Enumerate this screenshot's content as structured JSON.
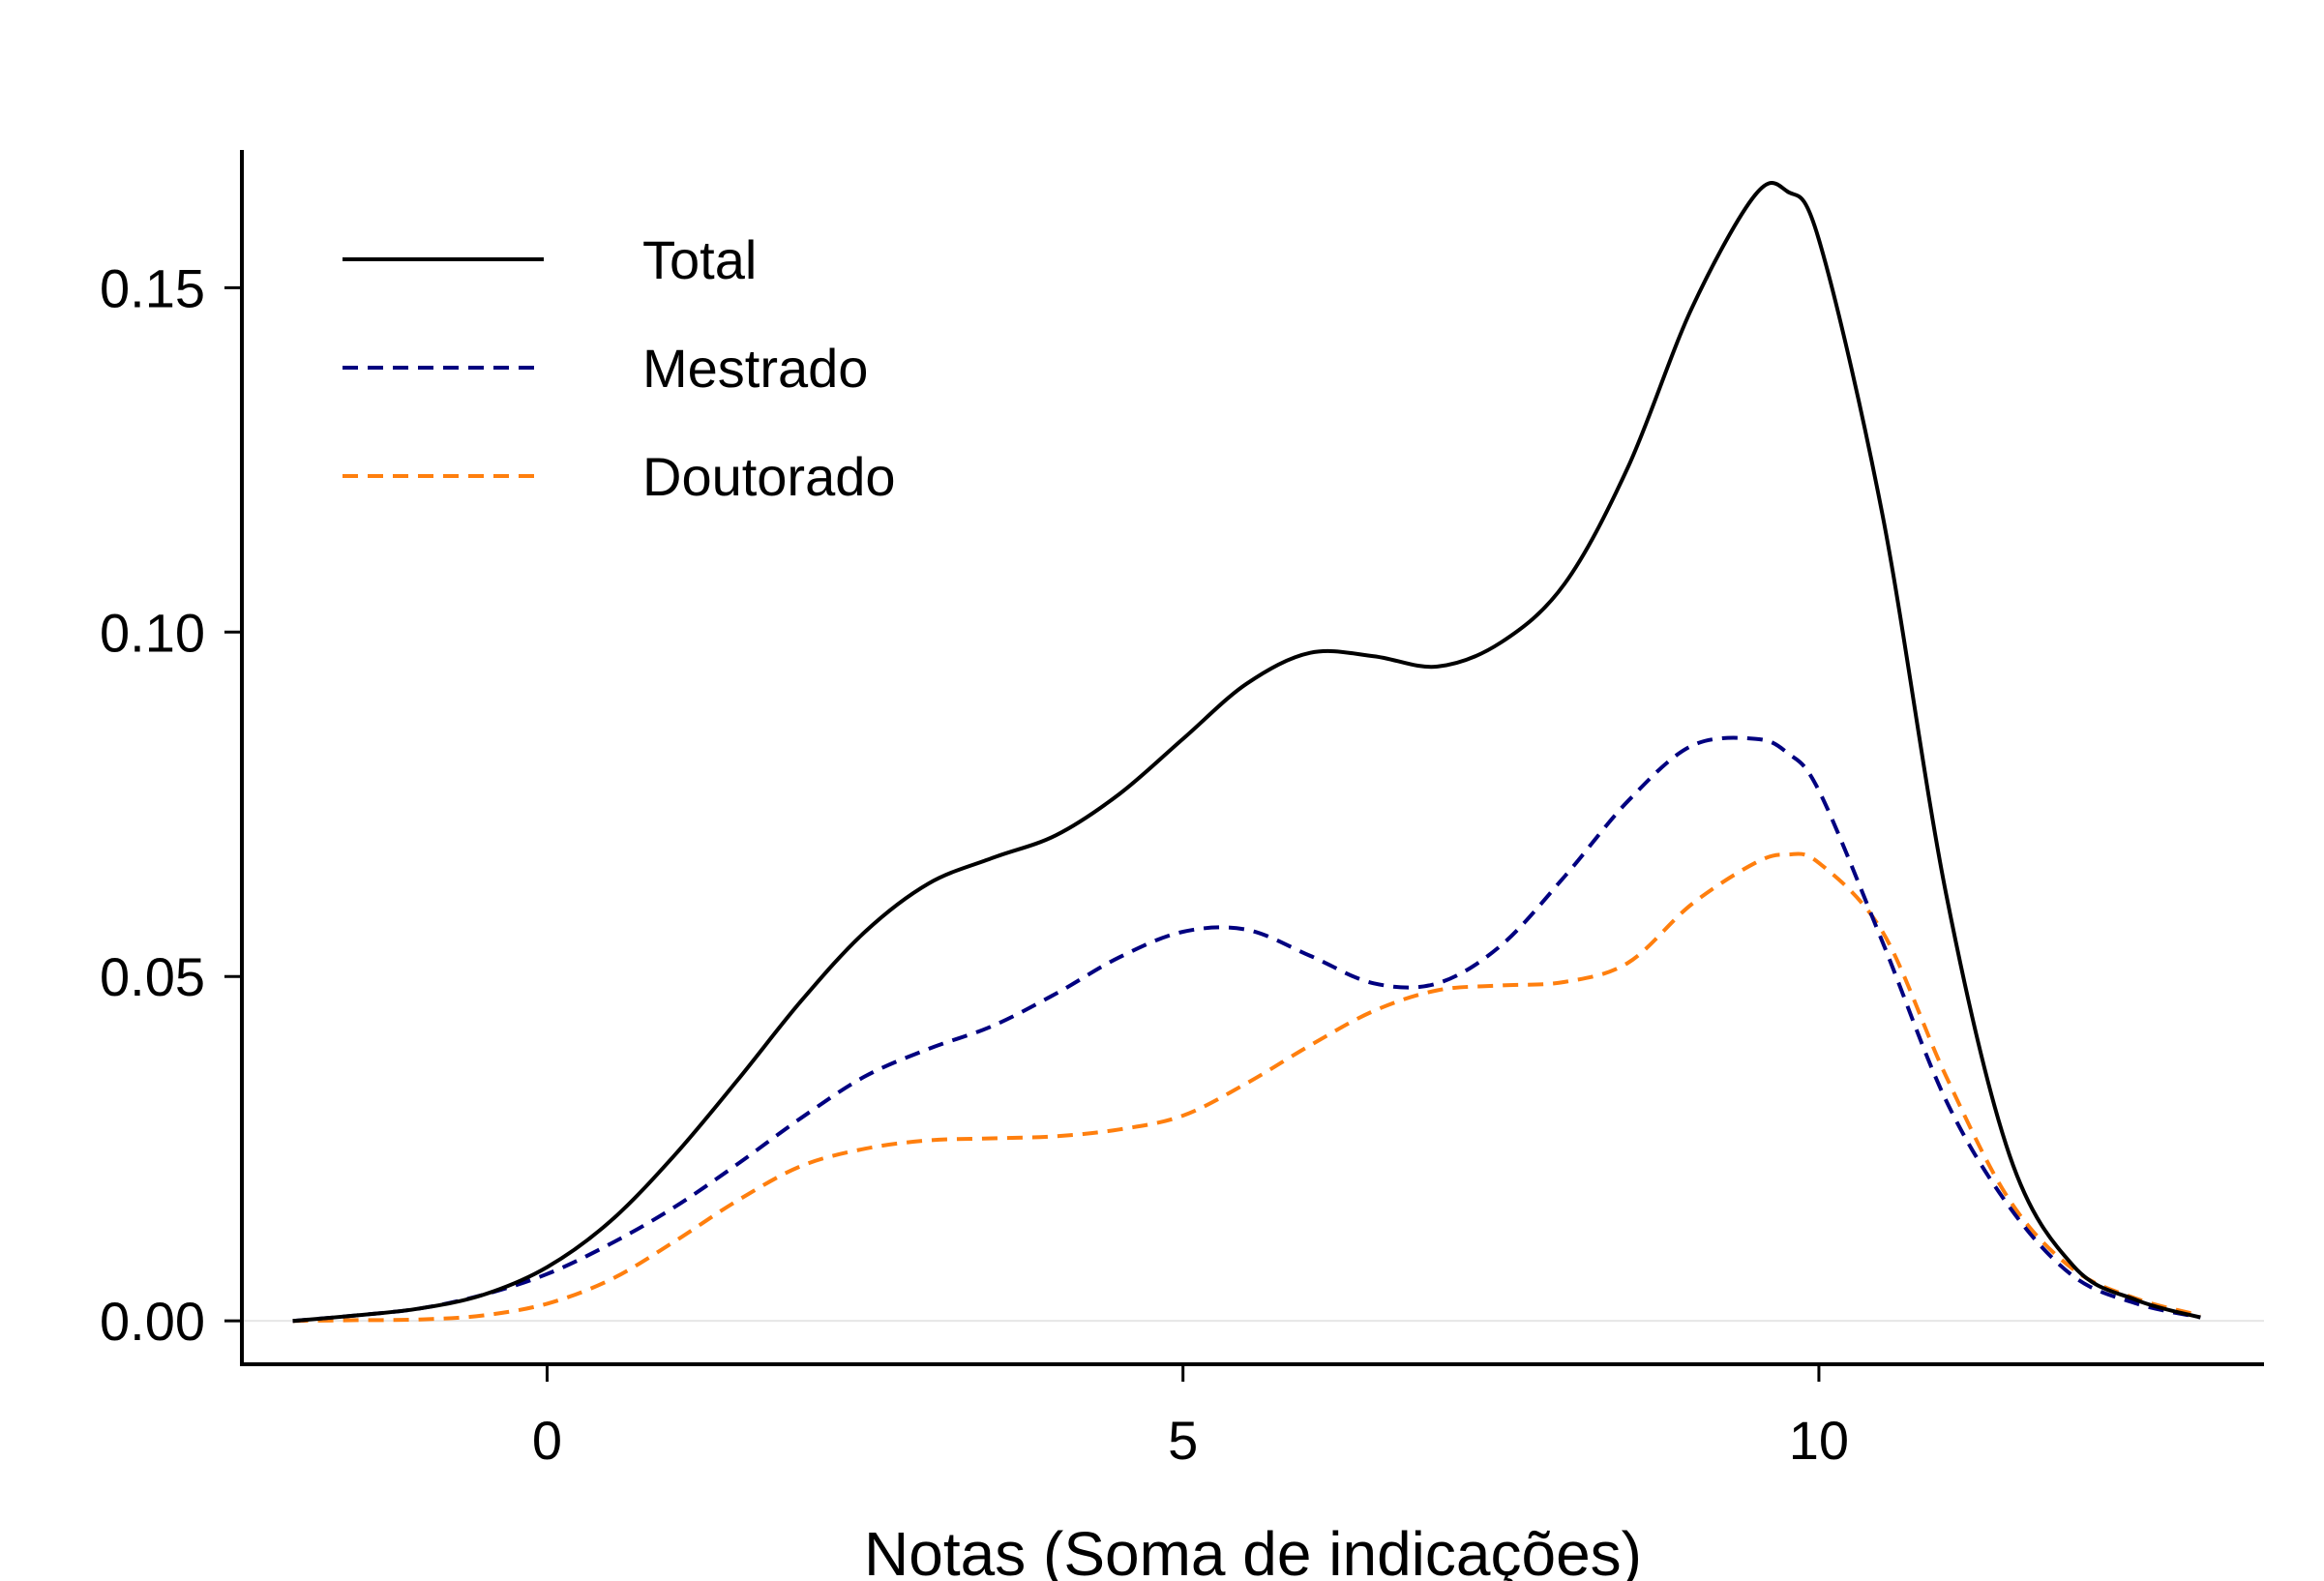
{
  "chart_data": {
    "type": "line",
    "title": "",
    "xlabel": "Notas (Soma de indicações)",
    "ylabel": "",
    "xlim": [
      -2.4,
      13.5
    ],
    "ylim": [
      -0.0063,
      0.17
    ],
    "x_ticks": [
      0,
      5,
      10
    ],
    "x_tick_labels": [
      "0",
      "5",
      "10"
    ],
    "y_ticks": [
      0.0,
      0.05,
      0.1,
      0.15
    ],
    "y_tick_labels": [
      "0.00",
      "0.05",
      "0.10",
      "0.15"
    ],
    "grid": false,
    "legend_position": "top-left",
    "x": [
      -2,
      -1.5,
      -1,
      -0.5,
      0,
      0.5,
      1,
      1.5,
      2,
      2.5,
      3,
      3.5,
      4,
      4.5,
      5,
      5.5,
      6,
      6.5,
      7,
      7.5,
      8,
      8.5,
      9,
      9.5,
      9.75,
      10,
      10.5,
      11,
      11.5,
      12,
      12.5,
      13
    ],
    "series": [
      {
        "name": "Total",
        "color": "#000000",
        "dash": "solid",
        "values": [
          0.0,
          0.0008,
          0.0018,
          0.0038,
          0.0078,
          0.0145,
          0.024,
          0.035,
          0.0465,
          0.0565,
          0.0635,
          0.0672,
          0.0705,
          0.0765,
          0.0845,
          0.0925,
          0.097,
          0.0965,
          0.095,
          0.0985,
          0.107,
          0.124,
          0.147,
          0.1635,
          0.164,
          0.157,
          0.117,
          0.062,
          0.024,
          0.008,
          0.003,
          0.0005
        ]
      },
      {
        "name": "Mestrado",
        "color": "#000080",
        "dash": "dashed",
        "values": [
          0.0,
          0.0008,
          0.0018,
          0.0038,
          0.0068,
          0.0112,
          0.0165,
          0.0228,
          0.0295,
          0.0355,
          0.0395,
          0.0428,
          0.0475,
          0.0528,
          0.0565,
          0.0568,
          0.053,
          0.049,
          0.049,
          0.0545,
          0.0645,
          0.0755,
          0.0835,
          0.0845,
          0.0825,
          0.077,
          0.055,
          0.032,
          0.0165,
          0.0065,
          0.0025,
          0.0005
        ]
      },
      {
        "name": "Doutorado",
        "color": "#ff7f0e",
        "dash": "dashed",
        "values": [
          0.0,
          0.0001,
          0.0002,
          0.0008,
          0.0025,
          0.006,
          0.0115,
          0.0175,
          0.0225,
          0.025,
          0.0262,
          0.0265,
          0.0268,
          0.0278,
          0.0298,
          0.0345,
          0.04,
          0.045,
          0.048,
          0.0487,
          0.0492,
          0.052,
          0.0605,
          0.0665,
          0.0677,
          0.0665,
          0.0565,
          0.0355,
          0.0175,
          0.0075,
          0.0032,
          0.0008
        ]
      }
    ]
  }
}
